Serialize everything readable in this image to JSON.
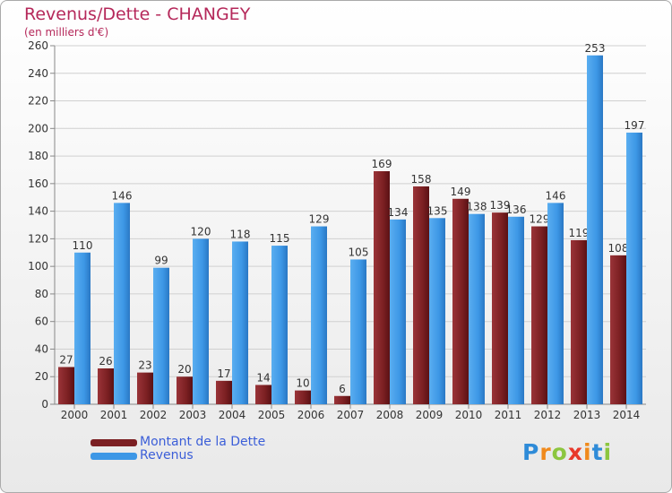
{
  "header": {
    "title": "Revenus/Dette - CHANGEY",
    "subtitle": "(en milliers d'€)"
  },
  "legend": {
    "debt_label": "Montant de la Dette",
    "revenue_label": "Revenus"
  },
  "logo": {
    "text": "Proxiti",
    "letters": [
      "P",
      "r",
      "o",
      "x",
      "i",
      "t",
      "i"
    ],
    "colors": [
      "#2e8bd8",
      "#f08a1c",
      "#8cc63f",
      "#e8392b",
      "#f08a1c",
      "#2e8bd8",
      "#8cc63f"
    ]
  },
  "colors": {
    "debt": "#7b1f22",
    "revenue": "#3d97e6",
    "title": "#b5285a",
    "legend_text": "#3b5ed8"
  },
  "chart_data": {
    "type": "bar",
    "title": "Revenus/Dette - CHANGEY",
    "ylabel": "(en milliers d'€)",
    "xlabel": "",
    "ylim": [
      0,
      260
    ],
    "ytick_step": 20,
    "grid": true,
    "legend": "bottom-left",
    "categories": [
      "2000",
      "2001",
      "2002",
      "2003",
      "2004",
      "2005",
      "2006",
      "2007",
      "2008",
      "2009",
      "2010",
      "2011",
      "2012",
      "2013",
      "2014"
    ],
    "series": [
      {
        "name": "Montant de la Dette",
        "values": [
          27,
          26,
          23,
          20,
          17,
          14,
          10,
          6,
          169,
          158,
          149,
          139,
          129,
          119,
          108
        ]
      },
      {
        "name": "Revenus",
        "values": [
          110,
          146,
          99,
          120,
          118,
          115,
          129,
          105,
          134,
          135,
          138,
          136,
          146,
          253,
          197
        ]
      }
    ]
  }
}
